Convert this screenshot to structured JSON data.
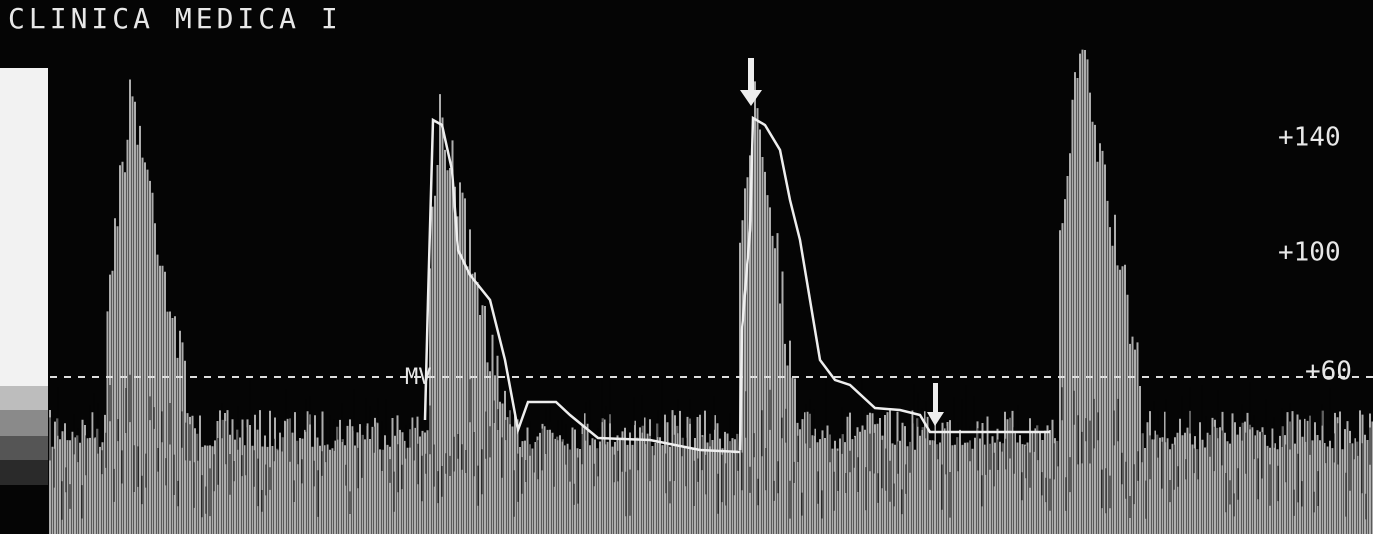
{
  "header": {
    "title": "CLINICA MEDICA I"
  },
  "scale": {
    "labels": [
      "+140",
      "+100",
      "+60"
    ]
  },
  "markers": {
    "mv": "MV"
  }
}
